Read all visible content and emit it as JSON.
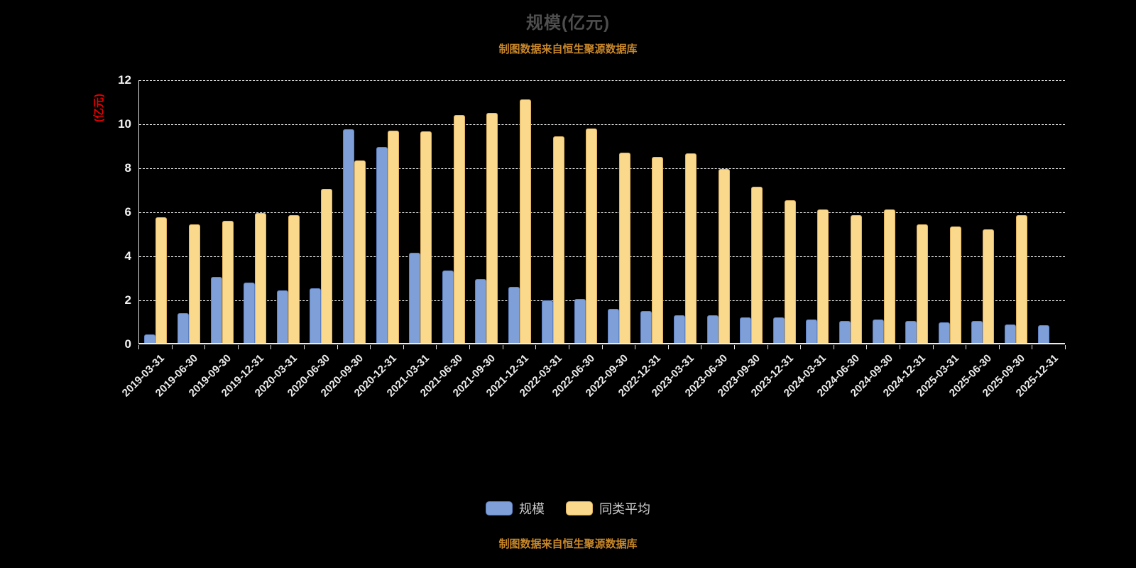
{
  "title": "规模(亿元)",
  "subtitle": "制图数据来自恒生聚源数据库",
  "footer_note": "制图数据来自恒生聚源数据库",
  "colors": {
    "background": "#000000",
    "title_text": "#4e4e4e",
    "source_note_text": "#c8872a",
    "y_axis_title_text": "#e60000",
    "axis_tick_text": "#ececec",
    "axis_line": "#e3e3e3",
    "gridline": "#efefef",
    "bar_scale_fill": "#7e9fd8",
    "bar_scale_border": "#5d80c1",
    "bar_peer_fill": "#fad88c",
    "bar_peer_border": "#ddb25f",
    "legend_text": "#cfcfcf"
  },
  "legend": [
    {
      "label": "规模",
      "color": "#7e9fd8",
      "border": "#5d80c1"
    },
    {
      "label": "同类平均",
      "color": "#fad88c",
      "border": "#ddb25f"
    }
  ],
  "chart_data": {
    "type": "bar",
    "title": "规模(亿元)",
    "subtitle": "制图数据来自恒生聚源数据库",
    "ylabel": "(亿元)",
    "ylim": [
      0,
      12
    ],
    "y_ticks": [
      0,
      2,
      4,
      6,
      8,
      10,
      12
    ],
    "grid": "horizontal-dashed",
    "legend_position": "bottom",
    "categories": [
      "2019-03-31",
      "2019-06-30",
      "2019-09-30",
      "2019-12-31",
      "2020-03-31",
      "2020-06-30",
      "2020-09-30",
      "2020-12-31",
      "2021-03-31",
      "2021-06-30",
      "2021-09-30",
      "2021-12-31",
      "2022-03-31",
      "2022-06-30",
      "2022-09-30",
      "2022-12-31",
      "2023-03-31",
      "2023-06-30",
      "2023-09-30",
      "2023-12-31",
      "2024-03-31",
      "2024-06-30",
      "2024-09-30",
      "2024-12-31",
      "2025-03-31",
      "2025-06-30",
      "2025-09-30",
      "2025-12-31"
    ],
    "series": [
      {
        "name": "规模",
        "values": [
          0.4,
          1.35,
          3.0,
          2.75,
          2.4,
          2.5,
          9.7,
          8.9,
          4.1,
          3.3,
          2.9,
          2.55,
          1.95,
          2.0,
          1.55,
          1.45,
          1.25,
          1.25,
          1.15,
          1.15,
          1.05,
          1.0,
          1.05,
          1.0,
          0.95,
          1.0,
          0.85,
          0.8
        ]
      },
      {
        "name": "同类平均",
        "values": [
          5.7,
          5.4,
          5.55,
          5.9,
          5.8,
          7.0,
          8.3,
          9.65,
          9.6,
          10.35,
          10.45,
          11.05,
          9.4,
          9.75,
          8.65,
          8.45,
          8.6,
          7.9,
          7.1,
          6.5,
          6.05,
          5.8,
          6.05,
          5.4,
          5.3,
          5.15,
          5.8,
          null
        ]
      }
    ]
  }
}
